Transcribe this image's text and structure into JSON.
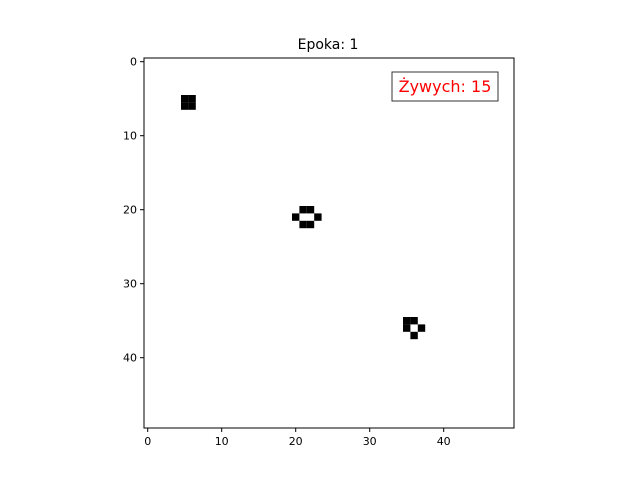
{
  "chart_data": {
    "type": "heatmap",
    "title": "Epoka: 1",
    "annotation": "Żywych: 15",
    "annotation_color": "#ff0000",
    "xlabel": "",
    "ylabel": "",
    "grid_size": [
      50,
      50
    ],
    "xlim": [
      -0.5,
      49.5
    ],
    "ylim": [
      49.5,
      -0.5
    ],
    "xticks": [
      0,
      10,
      20,
      30,
      40
    ],
    "yticks": [
      0,
      10,
      20,
      30,
      40
    ],
    "xtick_labels": [
      "0",
      "10",
      "20",
      "30",
      "40"
    ],
    "ytick_labels": [
      "0",
      "10",
      "20",
      "30",
      "40"
    ],
    "cmap": {
      "alive": "#000000",
      "dead": "#ffffff"
    },
    "alive_cells": [
      [
        5,
        5
      ],
      [
        6,
        5
      ],
      [
        5,
        6
      ],
      [
        6,
        6
      ],
      [
        21,
        20
      ],
      [
        22,
        20
      ],
      [
        20,
        21
      ],
      [
        23,
        21
      ],
      [
        21,
        22
      ],
      [
        22,
        22
      ],
      [
        35,
        35
      ],
      [
        36,
        35
      ],
      [
        35,
        36
      ],
      [
        37,
        36
      ],
      [
        36,
        37
      ]
    ]
  }
}
